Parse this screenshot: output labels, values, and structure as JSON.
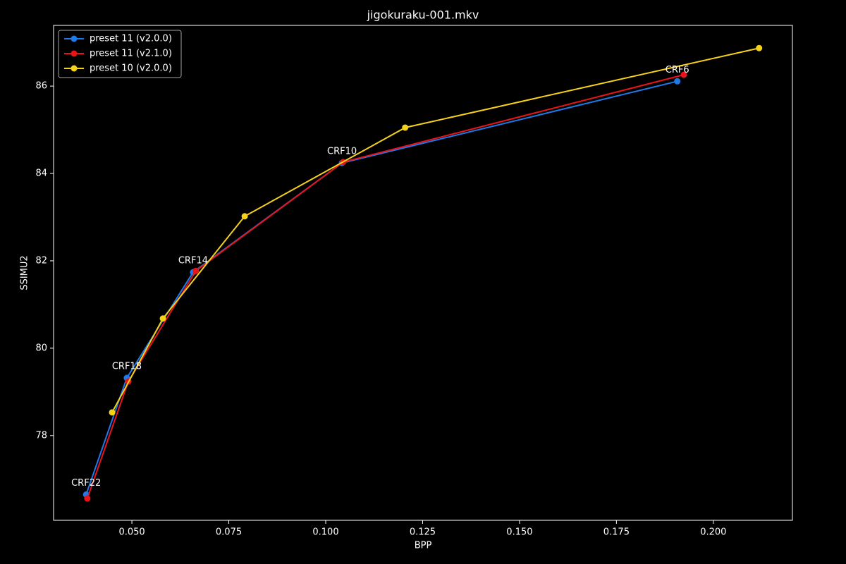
{
  "chart_data": {
    "type": "line",
    "title": "jigokuraku-001.mkv",
    "x_label": "BPP",
    "y_label": "SSIMU2",
    "xlim": [
      0.0298,
      0.2204
    ],
    "ylim": [
      76.06,
      87.39
    ],
    "xticks": [
      {
        "value": 0.05,
        "label": "0.050"
      },
      {
        "value": 0.075,
        "label": "0.075"
      },
      {
        "value": 0.1,
        "label": "0.100"
      },
      {
        "value": 0.125,
        "label": "0.125"
      },
      {
        "value": 0.15,
        "label": "0.150"
      },
      {
        "value": 0.175,
        "label": "0.175"
      },
      {
        "value": 0.2,
        "label": "0.200"
      }
    ],
    "yticks": [
      78,
      80,
      82,
      84,
      86
    ],
    "grid": false,
    "legend": "upper left",
    "series": [
      {
        "name": "preset 11 (v2.0.0)",
        "color": "#1f7ae8",
        "x": [
          0.0382,
          0.0487,
          0.0658,
          0.1042,
          0.1907
        ],
        "values": [
          76.65,
          79.32,
          81.74,
          84.24,
          86.11
        ]
      },
      {
        "name": "preset 11 (v2.1.0)",
        "color": "#e8141a",
        "x": [
          0.0385,
          0.0491,
          0.0665,
          0.1045,
          0.1924
        ],
        "values": [
          76.56,
          79.24,
          81.77,
          84.26,
          86.26
        ]
      },
      {
        "name": "preset 10 (v2.0.0)",
        "color": "#f5d21a",
        "x": [
          0.0449,
          0.058,
          0.0791,
          0.1205,
          0.2118
        ],
        "values": [
          78.53,
          80.68,
          83.02,
          85.05,
          86.87
        ]
      }
    ],
    "annotations": [
      "CRF22",
      "CRF18",
      "CRF14",
      "CRF10",
      "CRF6"
    ]
  }
}
